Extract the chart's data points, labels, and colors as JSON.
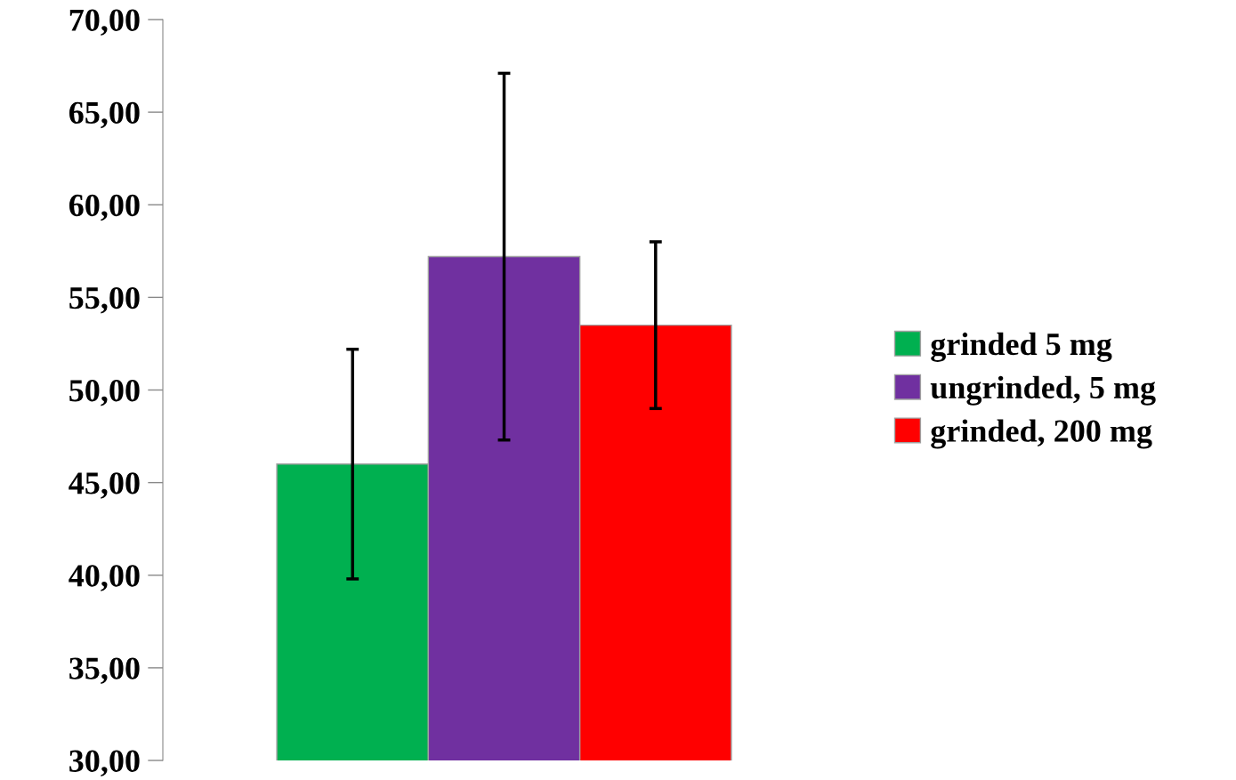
{
  "chart_data": {
    "type": "bar",
    "categories": [
      null
    ],
    "series": [
      {
        "name": "grinded 5 mg",
        "color": "#00b050",
        "values": [
          46.0
        ],
        "errors": [
          6.2
        ]
      },
      {
        "name": "ungrinded, 5 mg",
        "color": "#7030a0",
        "values": [
          57.2
        ],
        "errors": [
          9.9
        ]
      },
      {
        "name": "grinded, 200 mg",
        "color": "#ff0000",
        "values": [
          53.5
        ],
        "errors": [
          4.5
        ]
      }
    ],
    "ylim": [
      30,
      70
    ],
    "yticks": [
      {
        "value": 30,
        "label": "30,00"
      },
      {
        "value": 35,
        "label": "35,00"
      },
      {
        "value": 40,
        "label": "40,00"
      },
      {
        "value": 45,
        "label": "45,00"
      },
      {
        "value": 50,
        "label": "50,00"
      },
      {
        "value": 55,
        "label": "55,00"
      },
      {
        "value": 60,
        "label": "60,00"
      },
      {
        "value": 65,
        "label": "65,00"
      },
      {
        "value": 70,
        "label": "70,00"
      }
    ],
    "grid": false,
    "legend": "right"
  }
}
